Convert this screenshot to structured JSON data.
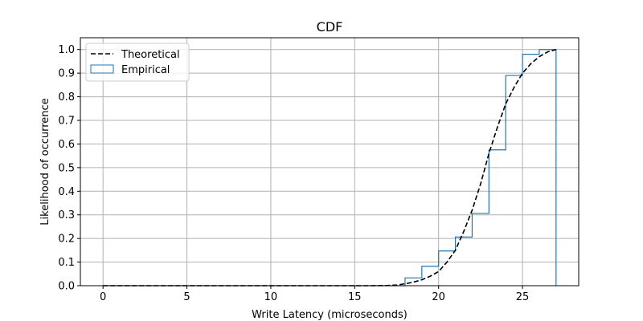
{
  "chart_data": {
    "type": "line",
    "title": "CDF",
    "xlabel": "Write Latency (microseconds)",
    "ylabel": "Likelihood of occurrence",
    "xlim": [
      -1.35,
      28.35
    ],
    "ylim": [
      0,
      1.05
    ],
    "xticks": [
      0,
      5,
      10,
      15,
      20,
      25
    ],
    "yticks": [
      0.0,
      0.1,
      0.2,
      0.3,
      0.4,
      0.5,
      0.6,
      0.7,
      0.8,
      0.9,
      1.0
    ],
    "xtick_labels": [
      "0",
      "5",
      "10",
      "15",
      "20",
      "25"
    ],
    "ytick_labels": [
      "0.0",
      "0.1",
      "0.2",
      "0.3",
      "0.4",
      "0.5",
      "0.6",
      "0.7",
      "0.8",
      "0.9",
      "1.0"
    ],
    "grid": true,
    "legend_position": "top-left",
    "series": [
      {
        "name": "Theoretical",
        "style": "dashed",
        "color": "#000000",
        "x": [
          0,
          2,
          4,
          6,
          8,
          10,
          12,
          14,
          16,
          17,
          17.5,
          18,
          18.5,
          19,
          19.5,
          20,
          20.5,
          21,
          21.5,
          22,
          22.5,
          23,
          23.5,
          24,
          24.5,
          25,
          25.5,
          26,
          26.5,
          27
        ],
        "y": [
          0,
          0,
          0,
          0,
          0,
          0,
          0,
          0,
          0,
          0.001,
          0.003,
          0.008,
          0.015,
          0.025,
          0.04,
          0.06,
          0.1,
          0.15,
          0.23,
          0.32,
          0.43,
          0.56,
          0.67,
          0.77,
          0.84,
          0.9,
          0.94,
          0.97,
          0.99,
          1.0
        ]
      },
      {
        "name": "Empirical",
        "style": "step",
        "color": "#1f77b4",
        "x": [
          0,
          18,
          19,
          20,
          21,
          22,
          23,
          24,
          25,
          26,
          27
        ],
        "y": [
          0,
          0.033,
          0.082,
          0.147,
          0.206,
          0.306,
          0.575,
          0.89,
          0.98,
          1.0,
          1.0
        ]
      }
    ]
  }
}
